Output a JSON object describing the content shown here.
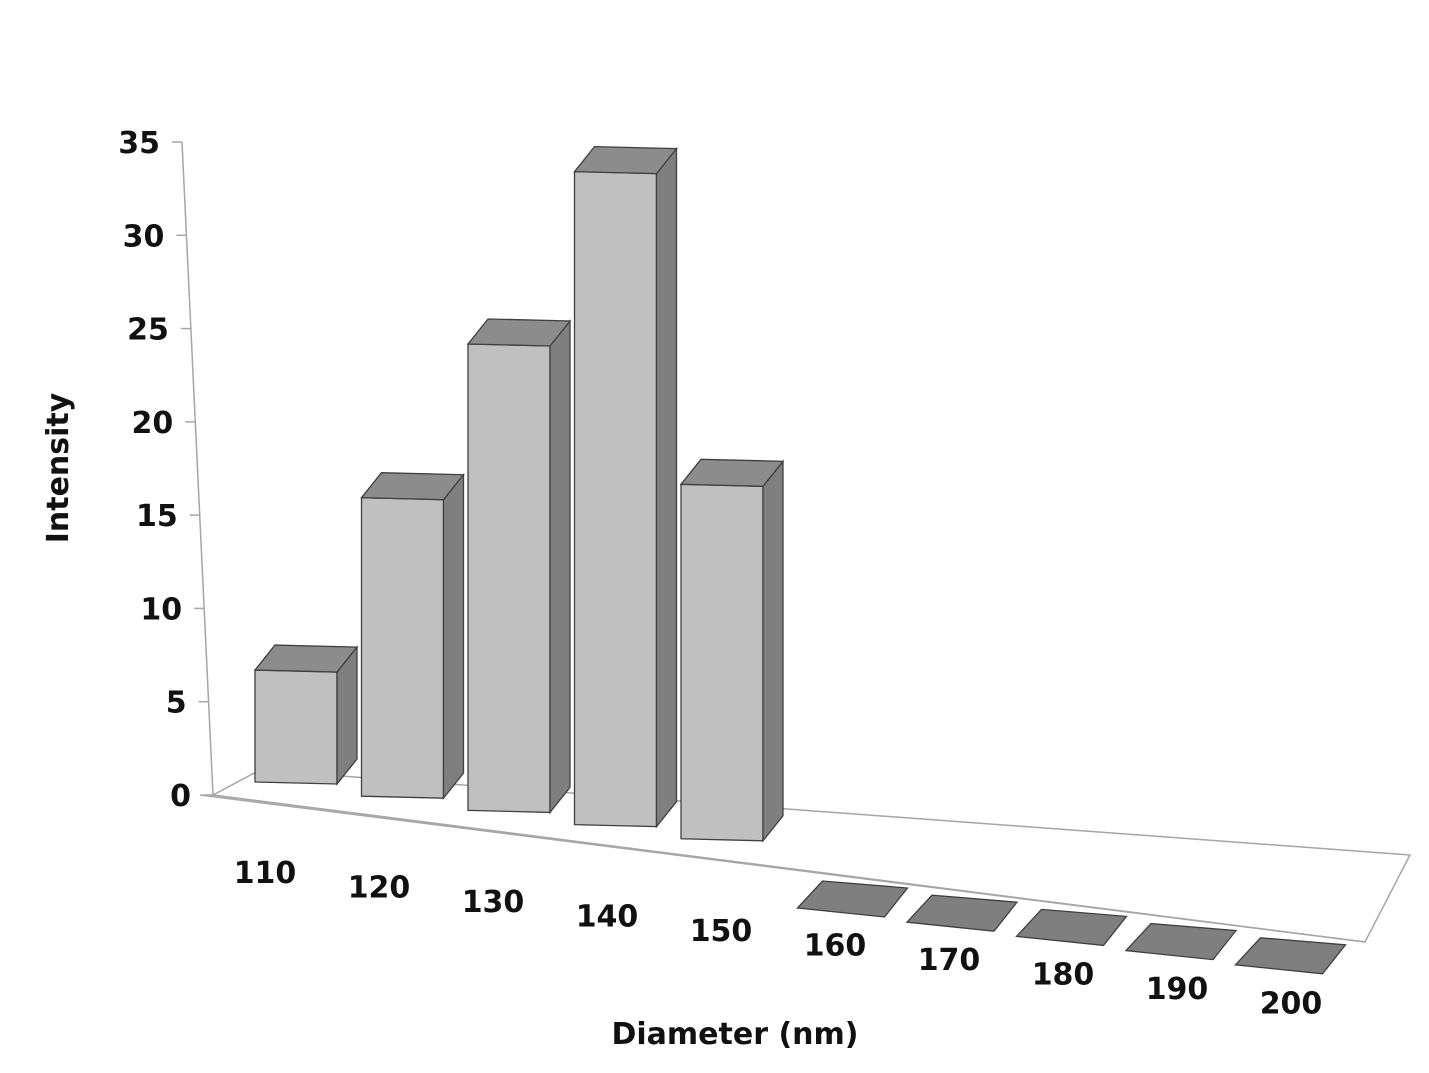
{
  "chart_data": {
    "type": "bar",
    "style": "3d-column",
    "title": "",
    "xlabel": "Diameter (nm)",
    "ylabel": "Intensity",
    "categories": [
      "110",
      "120",
      "130",
      "140",
      "150",
      "160",
      "170",
      "180",
      "190",
      "200"
    ],
    "values": [
      6,
      16,
      25,
      35,
      19,
      0,
      0,
      0,
      0,
      0
    ],
    "ylim": [
      0,
      35
    ],
    "yticks": [
      0,
      5,
      10,
      15,
      20,
      25,
      30,
      35
    ],
    "grid": false,
    "legend": null,
    "colors": {
      "front": "#c0c0c0",
      "side": "#7f7f7f",
      "top": "#8c8c8c",
      "edge": "#404040",
      "axis": "#a6a6a6"
    }
  }
}
